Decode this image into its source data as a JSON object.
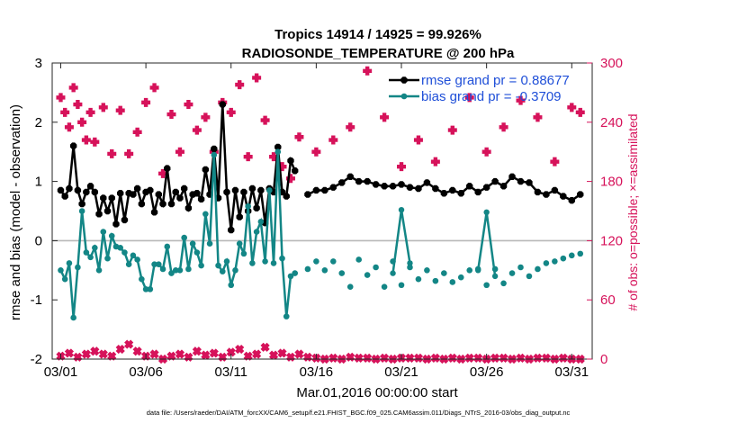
{
  "chart_data": {
    "type": "line",
    "title": "Tropics 14914 / 14925 = 99.926%",
    "subtitle": "RADIOSONDE_TEMPERATURE @ 200 hPa",
    "xlabel": "Mar.01,2016 00:00:00 start",
    "ylabel": "rmse and bias (model - observation)",
    "y2label": "# of obs: o=possible; ×=assimilated",
    "footnote": "data file: /Users/raeder/DAI/ATM_forcXX/CAM6_setup/f.e21.FHIST_BGC.f09_025.CAM6assim.011/Diags_NTrS_2016-03/obs_diag_output.nc",
    "xlim": [
      0.5,
      32.2
    ],
    "ylim": [
      -2,
      3
    ],
    "y2lim": [
      0,
      300
    ],
    "x_ticks": [
      1,
      6,
      11,
      16,
      21,
      26,
      31
    ],
    "x_tick_labels": [
      "03/01",
      "03/06",
      "03/11",
      "03/16",
      "03/21",
      "03/26",
      "03/31"
    ],
    "y_ticks": [
      -2,
      -1,
      0,
      1,
      2,
      3
    ],
    "y_tick_labels": [
      "-2",
      "-1",
      "0",
      "1",
      "2",
      "3"
    ],
    "y2_ticks": [
      0,
      60,
      120,
      180,
      240,
      300
    ],
    "y2_tick_labels": [
      "0",
      "60",
      "120",
      "180",
      "240",
      "300"
    ],
    "zero_line": 0,
    "legend": [
      {
        "name": "rmse grand pr = 0.88677",
        "color": "#000000"
      },
      {
        "name": "bias grand pr = -0.3709",
        "color": "#138686"
      }
    ],
    "series": [
      {
        "name": "rmse",
        "color": "#000000",
        "connected": true,
        "x": [
          1.0,
          1.25,
          1.5,
          1.75,
          2.0,
          2.25,
          2.5,
          2.75,
          3.0,
          3.25,
          3.5,
          3.75,
          4.0,
          4.25,
          4.5,
          4.75,
          5.0,
          5.25,
          5.5,
          5.75,
          6.0,
          6.25,
          6.5,
          6.75,
          7.0,
          7.25,
          7.5,
          7.75,
          8.0,
          8.25,
          8.5,
          8.75,
          9.0,
          9.25,
          9.5,
          9.75,
          10.0,
          10.25,
          10.5,
          10.75,
          11.0,
          11.25,
          11.5,
          11.75,
          12.0,
          12.25,
          12.5,
          12.75,
          13.0,
          13.25,
          13.5,
          13.75,
          14.0,
          14.25,
          14.5,
          14.75
        ],
        "y": [
          0.85,
          0.75,
          0.88,
          1.6,
          0.85,
          0.62,
          0.82,
          0.92,
          0.82,
          0.45,
          0.72,
          0.5,
          0.72,
          0.28,
          0.8,
          0.35,
          0.8,
          0.78,
          0.88,
          0.62,
          0.82,
          0.85,
          0.48,
          0.78,
          0.62,
          1.22,
          0.62,
          0.82,
          0.72,
          0.88,
          0.55,
          0.78,
          0.8,
          0.7,
          1.2,
          0.78,
          1.55,
          0.72,
          2.3,
          0.82,
          0.18,
          0.85,
          0.4,
          0.82,
          0.5,
          0.88,
          0.55,
          0.85,
          0.3,
          0.88,
          0.82,
          1.58,
          0.82,
          0.75,
          1.35,
          1.18
        ]
      },
      {
        "name": "rmse-daily",
        "color": "#000000",
        "connected": true,
        "x": [
          15.5,
          16,
          16.5,
          17,
          17.5,
          18,
          18.5,
          19,
          19.5,
          20,
          20.5,
          21,
          21.5,
          22,
          22.5,
          23,
          23.5,
          24,
          24.5,
          25,
          25.5,
          26,
          26.5,
          27,
          27.5,
          28,
          28.5,
          29,
          29.5,
          30,
          30.5,
          31,
          31.5
        ],
        "y": [
          0.78,
          0.85,
          0.85,
          0.9,
          0.98,
          1.08,
          1.0,
          1.0,
          0.95,
          0.92,
          0.92,
          0.95,
          0.9,
          0.88,
          0.98,
          0.88,
          0.8,
          0.85,
          0.8,
          0.92,
          0.82,
          0.9,
          1.0,
          0.92,
          1.08,
          1.0,
          0.98,
          0.82,
          0.78,
          0.85,
          0.75,
          0.68,
          0.78
        ]
      },
      {
        "name": "bias",
        "color": "#138686",
        "connected": true,
        "x": [
          1.0,
          1.25,
          1.5,
          1.75,
          2.0,
          2.25,
          2.5,
          2.75,
          3.0,
          3.25,
          3.5,
          3.75,
          4.0,
          4.25,
          4.5,
          4.75,
          5.0,
          5.25,
          5.5,
          5.75,
          6.0,
          6.25,
          6.5,
          6.75,
          7.0,
          7.25,
          7.5,
          7.75,
          8.0,
          8.25,
          8.5,
          8.75,
          9.0,
          9.25,
          9.5,
          9.75,
          10.0,
          10.25,
          10.5,
          10.75,
          11.0,
          11.25,
          11.5,
          11.75,
          12.0,
          12.25,
          12.5,
          12.75,
          13.0,
          13.25,
          13.5,
          13.75,
          14.0,
          14.25,
          14.5,
          14.75
        ],
        "y": [
          -0.5,
          -0.65,
          -0.38,
          -1.3,
          -0.45,
          0.5,
          -0.2,
          -0.28,
          -0.12,
          -0.5,
          0.15,
          -0.3,
          0.08,
          -0.1,
          -0.12,
          -0.2,
          -0.4,
          -0.25,
          -0.32,
          -0.65,
          -0.82,
          -0.82,
          -0.4,
          -0.4,
          -0.48,
          -0.1,
          -0.55,
          -0.5,
          -0.5,
          0.05,
          -0.48,
          -0.05,
          -0.2,
          -0.42,
          0.45,
          -0.05,
          1.45,
          -0.42,
          -0.52,
          -0.35,
          -0.75,
          -0.5,
          -0.05,
          -0.22,
          0.58,
          -0.38,
          0.15,
          0.32,
          -0.35,
          0.85,
          -0.38,
          1.5,
          -0.3,
          -1.28,
          -0.6,
          -0.55
        ]
      },
      {
        "name": "bias-daily",
        "color": "#138686",
        "connected": false,
        "x": [
          15.5,
          16,
          16.5,
          17,
          17.5,
          18,
          18.5,
          19,
          19.5,
          20,
          20.5,
          21,
          21.5,
          22,
          22.5,
          23,
          23.5,
          24,
          24.5,
          25,
          25.5,
          26,
          26.5,
          27,
          27.5,
          28,
          28.5,
          29,
          29.5,
          30,
          30.5,
          31,
          31.5
        ],
        "y": [
          -0.48,
          -0.35,
          -0.5,
          -0.35,
          -0.55,
          -0.78,
          -0.32,
          -0.58,
          -0.45,
          -0.78,
          -0.35,
          -0.75,
          -0.45,
          -0.65,
          -0.5,
          -0.68,
          -0.55,
          -0.7,
          -0.62,
          -0.5,
          -0.48,
          -0.75,
          -0.48,
          -0.72,
          -0.55,
          -0.45,
          -0.6,
          -0.48,
          -0.38,
          -0.35,
          -0.3,
          -0.25,
          -0.22
        ]
      },
      {
        "name": "bias-spikes",
        "color": "#138686",
        "connected": true,
        "segments": [
          {
            "x": [
              20.5,
              21,
              21.5
            ],
            "y": [
              -0.55,
              0.52,
              -0.38
            ]
          },
          {
            "x": [
              25.5,
              26,
              26.5
            ],
            "y": [
              -0.5,
              0.48,
              -0.6
            ]
          }
        ]
      },
      {
        "name": "obs possible",
        "color": "#d6125a",
        "axis": "right",
        "marker": "plus",
        "x": [
          1.0,
          1.25,
          1.5,
          1.75,
          2.0,
          2.25,
          2.5,
          2.75,
          3.0,
          3.5,
          4.0,
          4.5,
          5.0,
          5.5,
          6.0,
          6.5,
          7.0,
          7.5,
          8.0,
          8.5,
          9.0,
          9.5,
          10.0,
          10.5,
          11.0,
          11.5,
          12.0,
          12.5,
          13.0,
          13.5,
          14.0,
          14.5,
          15.0,
          16.0,
          17.0,
          18.0,
          19.0,
          20.0,
          21.0,
          22.0,
          23.0,
          24.0,
          25.0,
          26.0,
          27.0,
          28.0,
          29.0,
          30.0,
          31.0,
          31.5
        ],
        "y": [
          265,
          250,
          235,
          275,
          258,
          240,
          222,
          250,
          220,
          255,
          208,
          252,
          208,
          230,
          260,
          275,
          188,
          248,
          210,
          258,
          232,
          245,
          210,
          260,
          250,
          278,
          205,
          285,
          242,
          205,
          195,
          183,
          225,
          210,
          222,
          235,
          292,
          245,
          195,
          222,
          200,
          232,
          265,
          210,
          235,
          262,
          245,
          200,
          255,
          250
        ]
      },
      {
        "name": "obs assimilated",
        "color": "#d6125a",
        "axis": "right",
        "marker": "cross",
        "x": [
          1.0,
          1.5,
          2.0,
          2.5,
          3.0,
          3.5,
          4.0,
          4.5,
          5.0,
          5.5,
          6.0,
          6.5,
          7.0,
          7.5,
          8.0,
          8.5,
          9.0,
          9.5,
          10.0,
          10.5,
          11.0,
          11.5,
          12.0,
          12.5,
          13.0,
          13.5,
          14.0,
          14.5,
          15.0,
          15.5,
          16.0,
          16.5,
          17.0,
          17.5,
          18.0,
          18.5,
          19.0,
          19.5,
          20.0,
          20.5,
          21.0,
          21.5,
          22.0,
          22.5,
          23.0,
          23.5,
          24.0,
          24.5,
          25.0,
          25.5,
          26.0,
          26.5,
          27.0,
          27.5,
          28.0,
          28.5,
          29.0,
          29.5,
          30.0,
          30.5,
          31.0,
          31.5
        ],
        "y": [
          3,
          6,
          2,
          5,
          8,
          5,
          3,
          10,
          15,
          8,
          3,
          5,
          0,
          3,
          5,
          2,
          8,
          4,
          6,
          2,
          7,
          10,
          3,
          5,
          12,
          4,
          6,
          2,
          5,
          2,
          1,
          0,
          1,
          0,
          2,
          1,
          1,
          0,
          1,
          0,
          1,
          1,
          1,
          0,
          1,
          0,
          1,
          0,
          1,
          1,
          0,
          1,
          1,
          0,
          1,
          0,
          1,
          1,
          0,
          1,
          0,
          0
        ]
      }
    ]
  }
}
